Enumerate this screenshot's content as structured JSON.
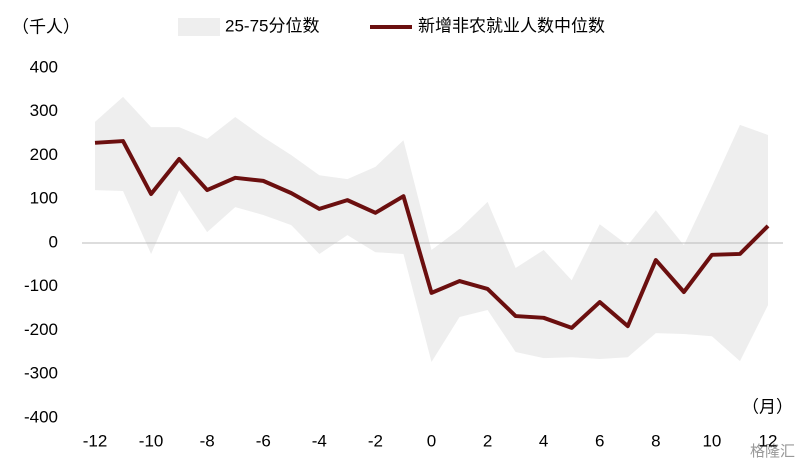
{
  "chart_data": {
    "type": "line",
    "y_unit_label": "（千人）",
    "x_unit_label": "（月）",
    "watermark": "格隆汇",
    "x": [
      -12,
      -11,
      -10,
      -9,
      -8,
      -7,
      -6,
      -5,
      -4,
      -3,
      -2,
      -1,
      0,
      1,
      2,
      3,
      4,
      5,
      6,
      7,
      8,
      9,
      10,
      11,
      12
    ],
    "xlim": [
      -12,
      12
    ],
    "xticks": [
      -12,
      -10,
      -8,
      -6,
      -4,
      -2,
      0,
      2,
      4,
      6,
      8,
      10,
      12
    ],
    "ylim": [
      -400,
      400
    ],
    "yticks": [
      -400,
      -300,
      -200,
      -100,
      0,
      100,
      200,
      300,
      400
    ],
    "band": {
      "name": "25-75分位数",
      "color": "#eeeeee",
      "low": [
        121,
        119,
        -25,
        121,
        25,
        82,
        64,
        41,
        -25,
        18,
        -21,
        -25,
        -272,
        -169,
        -153,
        -249,
        -263,
        -261,
        -265,
        -261,
        -206,
        -208,
        -213,
        -270,
        -142
      ],
      "high": [
        277,
        334,
        265,
        265,
        238,
        288,
        242,
        201,
        155,
        146,
        174,
        235,
        -16,
        32,
        94,
        -57,
        -16,
        -85,
        43,
        -5,
        75,
        -5,
        130,
        270,
        247
      ]
    },
    "series": [
      {
        "name": "新增非农就业人数中位数",
        "color": "#6b0f0f",
        "values": [
          229,
          233,
          112,
          192,
          121,
          149,
          142,
          114,
          78,
          98,
          69,
          107,
          -114,
          -87,
          -105,
          -167,
          -171,
          -194,
          -135,
          -190,
          -39,
          -112,
          -27,
          -25,
          39
        ]
      }
    ]
  }
}
